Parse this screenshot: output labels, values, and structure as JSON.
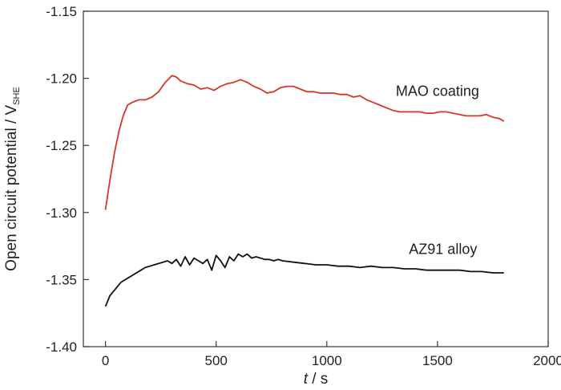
{
  "chart_data": {
    "type": "line",
    "xlabel_italic": "t",
    "xlabel_rest": " / s",
    "ylabel_main": "Open circuit potential / V",
    "ylabel_sub": "SHE",
    "xlim": [
      -100,
      2000
    ],
    "ylim": [
      -1.4,
      -1.15
    ],
    "xticks": [
      0,
      500,
      1000,
      1500,
      2000
    ],
    "yticks": [
      -1.15,
      -1.2,
      -1.25,
      -1.3,
      -1.35,
      -1.4
    ],
    "ytick_labels": [
      "-1.15",
      "-1.20",
      "-1.25",
      "-1.30",
      "-1.35",
      "-1.40"
    ],
    "grid": false,
    "series": [
      {
        "name": "MAO coating",
        "color": "#d9342b",
        "label_at": [
          1500,
          -1.213
        ],
        "x": [
          0,
          20,
          40,
          60,
          80,
          100,
          120,
          150,
          180,
          210,
          240,
          270,
          300,
          320,
          340,
          370,
          400,
          430,
          460,
          490,
          520,
          550,
          580,
          610,
          640,
          670,
          700,
          730,
          760,
          790,
          820,
          850,
          880,
          910,
          940,
          970,
          1000,
          1030,
          1060,
          1090,
          1120,
          1150,
          1180,
          1210,
          1240,
          1270,
          1300,
          1330,
          1360,
          1390,
          1420,
          1450,
          1480,
          1510,
          1540,
          1570,
          1600,
          1630,
          1660,
          1690,
          1720,
          1750,
          1780,
          1800
        ],
        "y": [
          -1.298,
          -1.276,
          -1.256,
          -1.24,
          -1.228,
          -1.22,
          -1.218,
          -1.216,
          -1.216,
          -1.214,
          -1.21,
          -1.203,
          -1.198,
          -1.199,
          -1.202,
          -1.204,
          -1.205,
          -1.208,
          -1.207,
          -1.209,
          -1.206,
          -1.204,
          -1.203,
          -1.201,
          -1.203,
          -1.206,
          -1.208,
          -1.211,
          -1.21,
          -1.207,
          -1.206,
          -1.206,
          -1.208,
          -1.21,
          -1.21,
          -1.211,
          -1.211,
          -1.211,
          -1.212,
          -1.212,
          -1.214,
          -1.213,
          -1.216,
          -1.218,
          -1.22,
          -1.222,
          -1.224,
          -1.225,
          -1.225,
          -1.225,
          -1.225,
          -1.226,
          -1.226,
          -1.225,
          -1.225,
          -1.226,
          -1.227,
          -1.228,
          -1.228,
          -1.228,
          -1.227,
          -1.229,
          -1.23,
          -1.232
        ]
      },
      {
        "name": "AZ91 alloy",
        "color": "#111111",
        "label_at": [
          1525,
          -1.331
        ],
        "x": [
          0,
          10,
          20,
          30,
          40,
          50,
          60,
          70,
          80,
          100,
          120,
          140,
          160,
          180,
          200,
          220,
          240,
          260,
          280,
          300,
          320,
          340,
          360,
          380,
          400,
          420,
          440,
          460,
          480,
          500,
          520,
          540,
          560,
          580,
          600,
          620,
          640,
          660,
          680,
          700,
          720,
          740,
          760,
          780,
          800,
          850,
          900,
          950,
          1000,
          1050,
          1100,
          1150,
          1200,
          1250,
          1300,
          1350,
          1400,
          1450,
          1500,
          1550,
          1600,
          1650,
          1700,
          1750,
          1800
        ],
        "y": [
          -1.37,
          -1.366,
          -1.362,
          -1.36,
          -1.358,
          -1.356,
          -1.354,
          -1.352,
          -1.351,
          -1.349,
          -1.347,
          -1.345,
          -1.343,
          -1.341,
          -1.34,
          -1.339,
          -1.338,
          -1.337,
          -1.336,
          -1.338,
          -1.335,
          -1.34,
          -1.333,
          -1.339,
          -1.334,
          -1.336,
          -1.338,
          -1.335,
          -1.343,
          -1.332,
          -1.336,
          -1.341,
          -1.333,
          -1.336,
          -1.331,
          -1.333,
          -1.331,
          -1.334,
          -1.333,
          -1.334,
          -1.335,
          -1.335,
          -1.336,
          -1.335,
          -1.336,
          -1.337,
          -1.338,
          -1.339,
          -1.339,
          -1.34,
          -1.34,
          -1.341,
          -1.34,
          -1.341,
          -1.341,
          -1.342,
          -1.342,
          -1.343,
          -1.343,
          -1.343,
          -1.343,
          -1.344,
          -1.344,
          -1.345,
          -1.345
        ]
      }
    ]
  }
}
